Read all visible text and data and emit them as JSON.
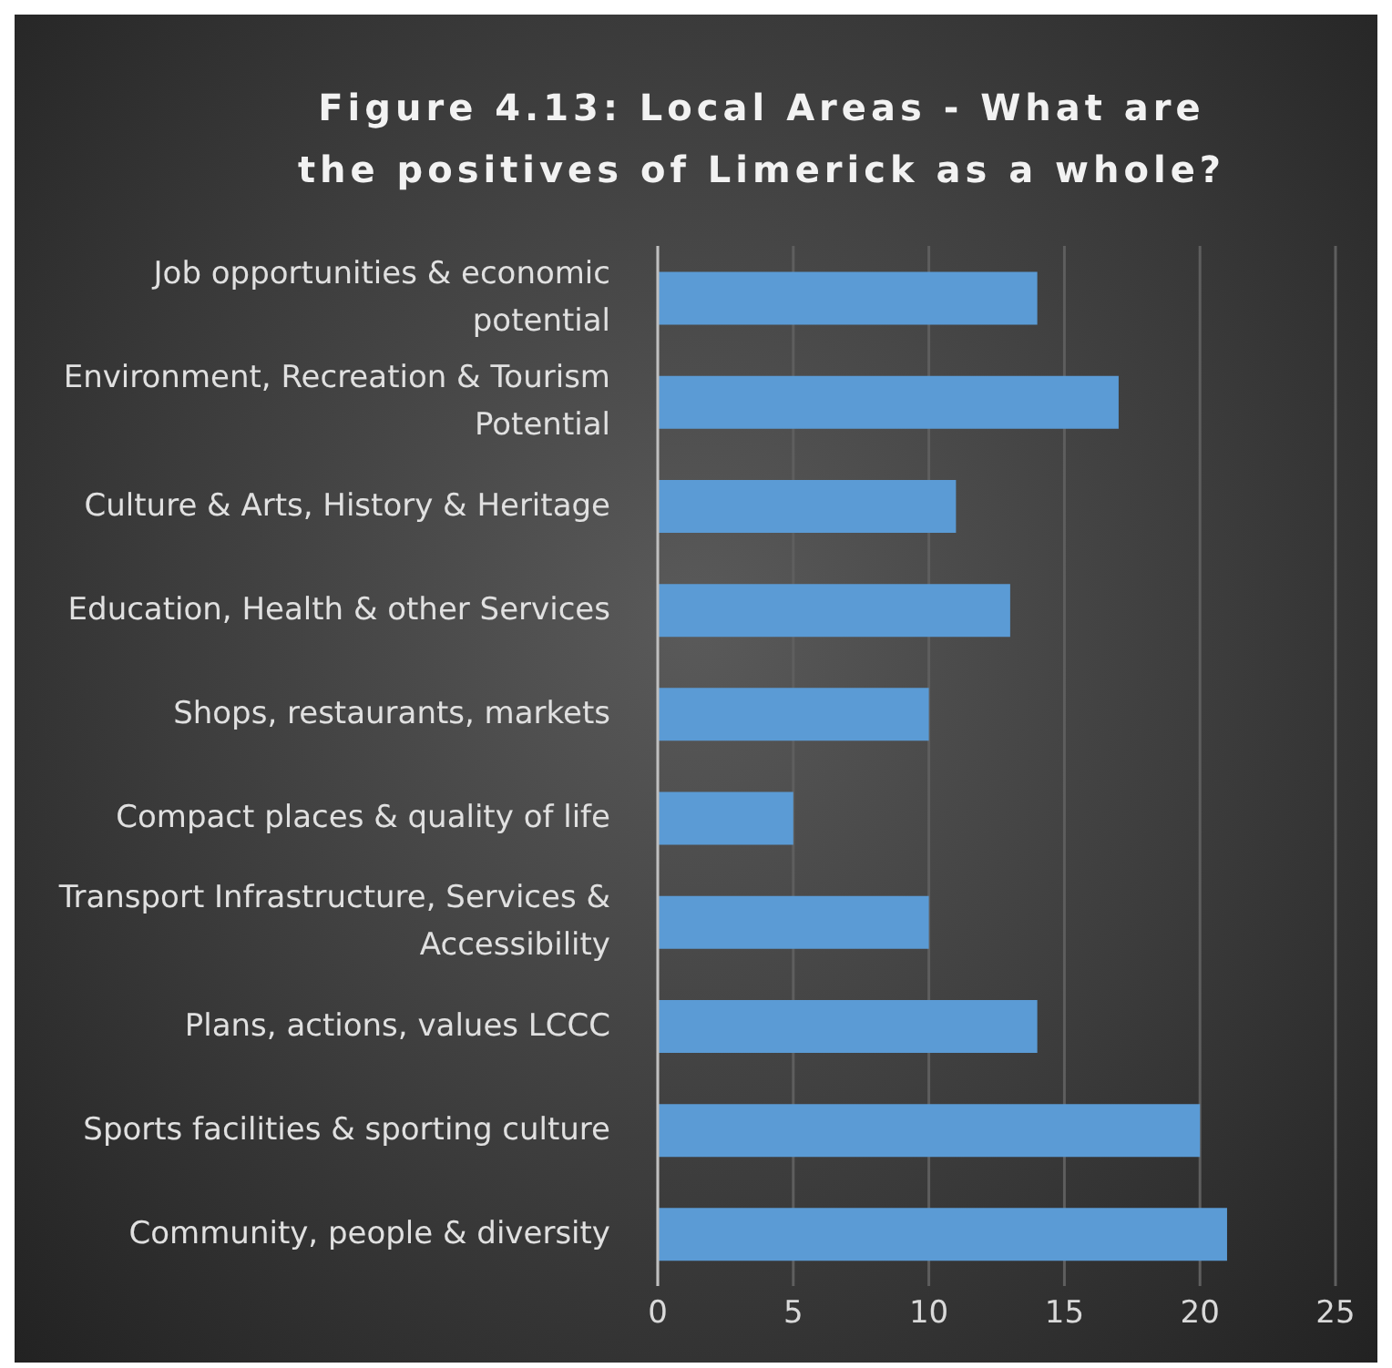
{
  "chart_data": {
    "type": "bar",
    "orientation": "horizontal",
    "title": "Figure 4.13: Local Areas - What are the positives of Limerick as a whole?",
    "categories": [
      "Job opportunities & economic potential",
      "Environment, Recreation & Tourism Potential",
      "Culture & Arts, History & Heritage",
      "Education, Health & other Services",
      "Shops, restaurants, markets",
      "Compact places & quality of life",
      "Transport Infrastructure, Services & Accessibility",
      "Plans, actions, values LCCC",
      "Sports facilities & sporting culture",
      "Community, people & diversity"
    ],
    "values": [
      14,
      17,
      11,
      13,
      10,
      5,
      10,
      14,
      20,
      21
    ],
    "color": "#5b9bd5",
    "xlim": [
      0,
      25
    ],
    "xticks": [
      0,
      5,
      10,
      15,
      20,
      25
    ],
    "grid": "x",
    "legend": false
  }
}
